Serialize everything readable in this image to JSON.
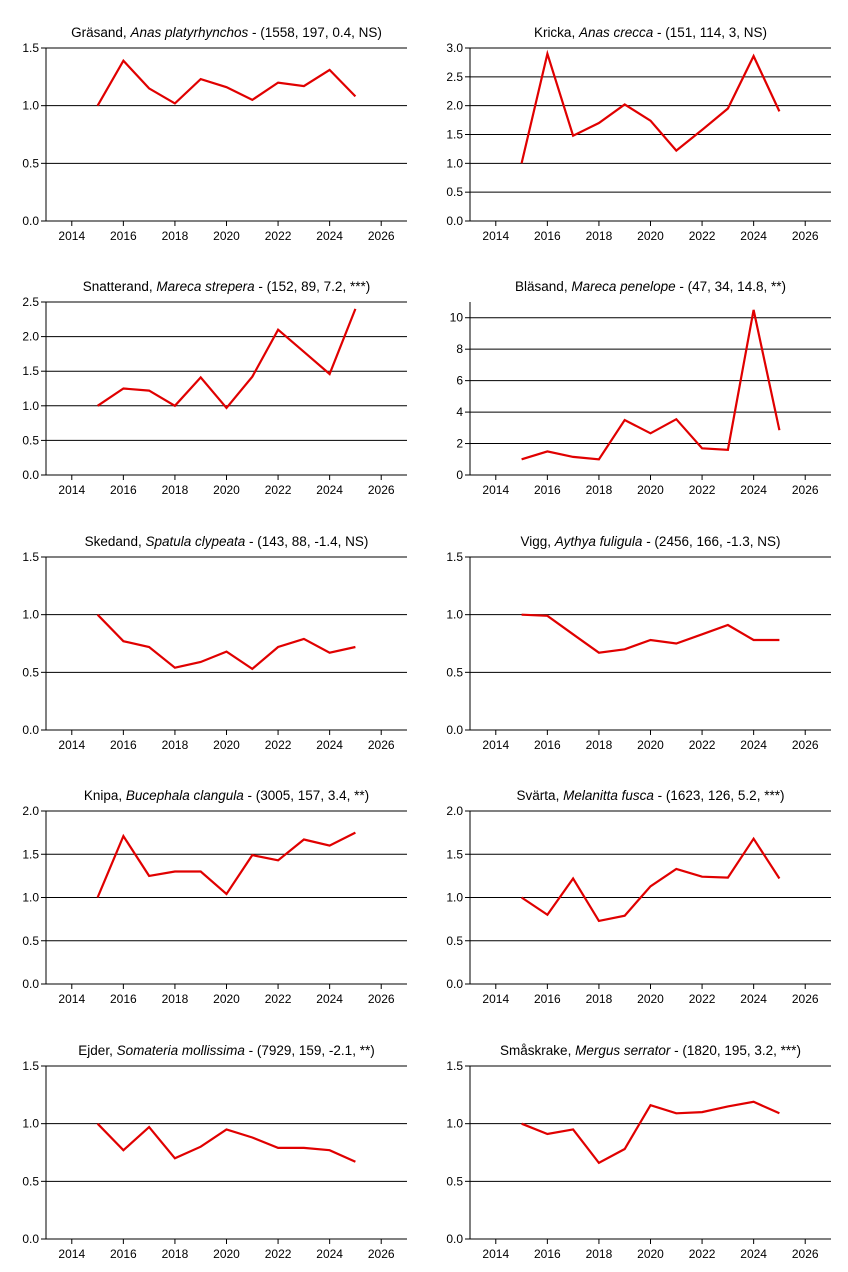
{
  "page": {
    "line_color": "#e00000",
    "axis_color": "#000000"
  },
  "chart_data": [
    {
      "type": "line",
      "title_plain": "Gräsand, ",
      "title_italic": "Anas platyrhynchos",
      "title_tail": " - (1558, 197, 0.4, NS)",
      "xlim": [
        2013,
        2027
      ],
      "xticks": [
        2014,
        2016,
        2018,
        2020,
        2022,
        2024,
        2026
      ],
      "ylim": [
        0,
        1.5
      ],
      "yticks": [
        "0.0",
        "0.5",
        "1.0",
        "1.5"
      ],
      "grid": "horizontal",
      "x": [
        2015,
        2016,
        2017,
        2018,
        2019,
        2020,
        2021,
        2022,
        2023,
        2024,
        2025
      ],
      "values": [
        1.0,
        1.39,
        1.15,
        1.02,
        1.23,
        1.16,
        1.05,
        1.2,
        1.17,
        1.31,
        1.08
      ]
    },
    {
      "type": "line",
      "title_plain": "Kricka, ",
      "title_italic": "Anas crecca",
      "title_tail": " - (151, 114, 3, NS)",
      "xlim": [
        2013,
        2027
      ],
      "xticks": [
        2014,
        2016,
        2018,
        2020,
        2022,
        2024,
        2026
      ],
      "ylim": [
        0,
        3.0
      ],
      "yticks": [
        "0.0",
        "0.5",
        "1.0",
        "1.5",
        "2.0",
        "2.5",
        "3.0"
      ],
      "grid": "horizontal",
      "x": [
        2015,
        2016,
        2017,
        2018,
        2019,
        2020,
        2021,
        2022,
        2023,
        2024,
        2025
      ],
      "values": [
        1.0,
        2.9,
        1.48,
        1.7,
        2.02,
        1.74,
        1.22,
        1.58,
        1.95,
        2.86,
        1.9
      ]
    },
    {
      "type": "line",
      "title_plain": "Snatterand, ",
      "title_italic": "Mareca strepera",
      "title_tail": " - (152, 89, 7.2, ***)",
      "xlim": [
        2013,
        2027
      ],
      "xticks": [
        2014,
        2016,
        2018,
        2020,
        2022,
        2024,
        2026
      ],
      "ylim": [
        0,
        2.5
      ],
      "yticks": [
        "0.0",
        "0.5",
        "1.0",
        "1.5",
        "2.0",
        "2.5"
      ],
      "grid": "horizontal",
      "x": [
        2015,
        2016,
        2017,
        2018,
        2019,
        2020,
        2021,
        2022,
        2023,
        2024,
        2025
      ],
      "values": [
        1.0,
        1.25,
        1.22,
        1.0,
        1.41,
        0.97,
        1.42,
        2.1,
        1.78,
        1.46,
        2.4
      ]
    },
    {
      "type": "line",
      "title_plain": "Bläsand, ",
      "title_italic": "Mareca penelope",
      "title_tail": " - (47, 34, 14.8, **)",
      "xlim": [
        2013,
        2027
      ],
      "xticks": [
        2014,
        2016,
        2018,
        2020,
        2022,
        2024,
        2026
      ],
      "ylim": [
        0,
        11
      ],
      "yticks": [
        "0",
        "2",
        "4",
        "6",
        "8",
        "10"
      ],
      "grid": "horizontal",
      "x": [
        2015,
        2016,
        2017,
        2018,
        2019,
        2020,
        2021,
        2022,
        2023,
        2024,
        2025
      ],
      "values": [
        1.0,
        1.5,
        1.15,
        1.0,
        3.5,
        2.65,
        3.55,
        1.7,
        1.6,
        10.5,
        2.85
      ]
    },
    {
      "type": "line",
      "title_plain": "Skedand, ",
      "title_italic": "Spatula clypeata",
      "title_tail": " - (143, 88, -1.4, NS)",
      "xlim": [
        2013,
        2027
      ],
      "xticks": [
        2014,
        2016,
        2018,
        2020,
        2022,
        2024,
        2026
      ],
      "ylim": [
        0,
        1.5
      ],
      "yticks": [
        "0.0",
        "0.5",
        "1.0",
        "1.5"
      ],
      "grid": "horizontal",
      "x": [
        2015,
        2016,
        2017,
        2018,
        2019,
        2020,
        2021,
        2022,
        2023,
        2024,
        2025
      ],
      "values": [
        1.0,
        0.77,
        0.72,
        0.54,
        0.59,
        0.68,
        0.53,
        0.72,
        0.79,
        0.67,
        0.72
      ]
    },
    {
      "type": "line",
      "title_plain": "Vigg, ",
      "title_italic": "Aythya fuligula",
      "title_tail": " - (2456, 166, -1.3, NS)",
      "xlim": [
        2013,
        2027
      ],
      "xticks": [
        2014,
        2016,
        2018,
        2020,
        2022,
        2024,
        2026
      ],
      "ylim": [
        0,
        1.5
      ],
      "yticks": [
        "0.0",
        "0.5",
        "1.0",
        "1.5"
      ],
      "grid": "horizontal",
      "x": [
        2015,
        2016,
        2017,
        2018,
        2019,
        2020,
        2021,
        2022,
        2023,
        2024,
        2025
      ],
      "values": [
        1.0,
        0.99,
        0.83,
        0.67,
        0.7,
        0.78,
        0.75,
        0.83,
        0.91,
        0.78,
        0.78
      ]
    },
    {
      "type": "line",
      "title_plain": "Knipa, ",
      "title_italic": "Bucephala clangula",
      "title_tail": " - (3005, 157, 3.4, **)",
      "xlim": [
        2013,
        2027
      ],
      "xticks": [
        2014,
        2016,
        2018,
        2020,
        2022,
        2024,
        2026
      ],
      "ylim": [
        0,
        2.0
      ],
      "yticks": [
        "0.0",
        "0.5",
        "1.0",
        "1.5",
        "2.0"
      ],
      "grid": "horizontal",
      "x": [
        2015,
        2016,
        2017,
        2018,
        2019,
        2020,
        2021,
        2022,
        2023,
        2024,
        2025
      ],
      "values": [
        1.0,
        1.71,
        1.25,
        1.3,
        1.3,
        1.04,
        1.49,
        1.43,
        1.67,
        1.6,
        1.75
      ]
    },
    {
      "type": "line",
      "title_plain": "Svärta, ",
      "title_italic": "Melanitta fusca",
      "title_tail": " - (1623, 126, 5.2, ***)",
      "xlim": [
        2013,
        2027
      ],
      "xticks": [
        2014,
        2016,
        2018,
        2020,
        2022,
        2024,
        2026
      ],
      "ylim": [
        0,
        2.0
      ],
      "yticks": [
        "0.0",
        "0.5",
        "1.0",
        "1.5",
        "2.0"
      ],
      "grid": "horizontal",
      "x": [
        2015,
        2016,
        2017,
        2018,
        2019,
        2020,
        2021,
        2022,
        2023,
        2024,
        2025
      ],
      "values": [
        1.0,
        0.8,
        1.22,
        0.73,
        0.79,
        1.13,
        1.33,
        1.24,
        1.23,
        1.68,
        1.22
      ]
    },
    {
      "type": "line",
      "title_plain": "Ejder, ",
      "title_italic": "Somateria mollissima",
      "title_tail": " - (7929, 159, -2.1, **)",
      "xlim": [
        2013,
        2027
      ],
      "xticks": [
        2014,
        2016,
        2018,
        2020,
        2022,
        2024,
        2026
      ],
      "ylim": [
        0,
        1.5
      ],
      "yticks": [
        "0.0",
        "0.5",
        "1.0",
        "1.5"
      ],
      "grid": "horizontal",
      "x": [
        2015,
        2016,
        2017,
        2018,
        2019,
        2020,
        2021,
        2022,
        2023,
        2024,
        2025
      ],
      "values": [
        1.0,
        0.77,
        0.97,
        0.7,
        0.8,
        0.95,
        0.88,
        0.79,
        0.79,
        0.77,
        0.67
      ]
    },
    {
      "type": "line",
      "title_plain": "Småskrake, ",
      "title_italic": "Mergus serrator",
      "title_tail": " - (1820, 195, 3.2, ***)",
      "xlim": [
        2013,
        2027
      ],
      "xticks": [
        2014,
        2016,
        2018,
        2020,
        2022,
        2024,
        2026
      ],
      "ylim": [
        0,
        1.5
      ],
      "yticks": [
        "0.0",
        "0.5",
        "1.0",
        "1.5"
      ],
      "grid": "horizontal",
      "x": [
        2015,
        2016,
        2017,
        2018,
        2019,
        2020,
        2021,
        2022,
        2023,
        2024,
        2025
      ],
      "values": [
        1.0,
        0.91,
        0.95,
        0.66,
        0.78,
        1.16,
        1.09,
        1.1,
        1.15,
        1.19,
        1.09
      ]
    }
  ]
}
